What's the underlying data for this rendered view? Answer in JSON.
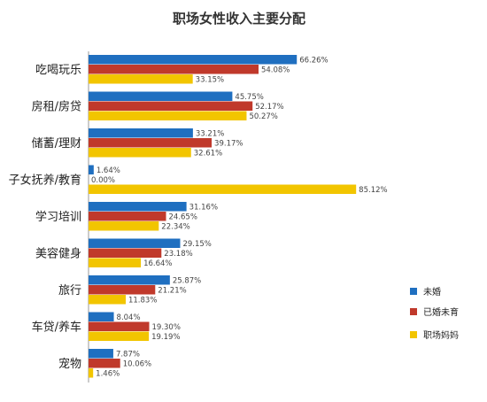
{
  "chart_data": {
    "type": "bar",
    "orientation": "horizontal",
    "title": "职场女性收入主要分配",
    "categories": [
      "吃喝玩乐",
      "房租/房贷",
      "储蓄/理财",
      "子女抚养/教育",
      "学习培训",
      "美容健身",
      "旅行",
      "车贷/养车",
      "宠物"
    ],
    "series": [
      {
        "name": "未婚",
        "color": "#1f6fc0",
        "values": [
          66.26,
          45.75,
          33.21,
          1.64,
          31.16,
          29.15,
          25.87,
          8.04,
          7.87
        ],
        "labels": [
          "66.26%",
          "45.75%",
          "33.21%",
          "1.64%",
          "31.16%",
          "29.15%",
          "25.87%",
          "8.04%",
          "7.87%"
        ]
      },
      {
        "name": "已婚未育",
        "color": "#c0392b",
        "values": [
          54.08,
          52.17,
          39.17,
          0.0,
          24.65,
          23.18,
          21.21,
          19.3,
          10.06
        ],
        "labels": [
          "54.08%",
          "52.17%",
          "39.17%",
          "0.00%",
          "24.65%",
          "23.18%",
          "21.21%",
          "19.30%",
          "10.06%"
        ]
      },
      {
        "name": "职场妈妈",
        "color": "#f2c500",
        "values": [
          33.15,
          50.27,
          32.61,
          85.12,
          22.34,
          16.64,
          11.83,
          19.19,
          1.46
        ],
        "labels": [
          "33.15%",
          "50.27%",
          "32.61%",
          "85.12%",
          "22.34%",
          "16.64%",
          "11.83%",
          "19.19%",
          "1.46%"
        ]
      }
    ],
    "xlim": [
      0,
      100
    ],
    "grid": false,
    "legend": "right"
  }
}
